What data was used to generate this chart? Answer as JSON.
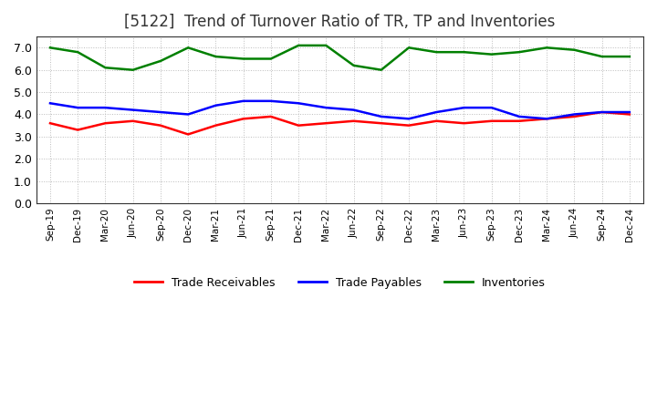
{
  "title": "[5122]  Trend of Turnover Ratio of TR, TP and Inventories",
  "x_labels": [
    "Sep-19",
    "Dec-19",
    "Mar-20",
    "Jun-20",
    "Sep-20",
    "Dec-20",
    "Mar-21",
    "Jun-21",
    "Sep-21",
    "Dec-21",
    "Mar-22",
    "Jun-22",
    "Sep-22",
    "Dec-22",
    "Mar-23",
    "Jun-23",
    "Sep-23",
    "Dec-23",
    "Mar-24",
    "Jun-24",
    "Sep-24",
    "Dec-24"
  ],
  "trade_receivables": [
    3.6,
    3.3,
    3.6,
    3.7,
    3.5,
    3.1,
    3.5,
    3.8,
    3.9,
    3.5,
    3.6,
    3.7,
    3.6,
    3.5,
    3.7,
    3.6,
    3.7,
    3.7,
    3.8,
    3.9,
    4.1,
    4.0
  ],
  "trade_payables": [
    4.5,
    4.3,
    4.3,
    4.2,
    4.1,
    4.0,
    4.4,
    4.6,
    4.6,
    4.5,
    4.3,
    4.2,
    3.9,
    3.8,
    4.1,
    4.3,
    4.3,
    3.9,
    3.8,
    4.0,
    4.1,
    4.1
  ],
  "inventories": [
    7.0,
    6.8,
    6.1,
    6.0,
    6.4,
    7.0,
    6.6,
    6.5,
    6.5,
    7.1,
    7.1,
    6.2,
    6.0,
    7.0,
    6.8,
    6.8,
    6.7,
    6.8,
    7.0,
    6.9,
    6.6,
    6.6
  ],
  "tr_color": "#ff0000",
  "tp_color": "#0000ff",
  "inv_color": "#008000",
  "ylim": [
    0.0,
    7.5
  ],
  "yticks": [
    0.0,
    1.0,
    2.0,
    3.0,
    4.0,
    5.0,
    6.0,
    7.0
  ],
  "legend_labels": [
    "Trade Receivables",
    "Trade Payables",
    "Inventories"
  ],
  "background_color": "#ffffff",
  "grid_color": "#bbbbbb",
  "title_fontsize": 12,
  "line_width": 1.8
}
